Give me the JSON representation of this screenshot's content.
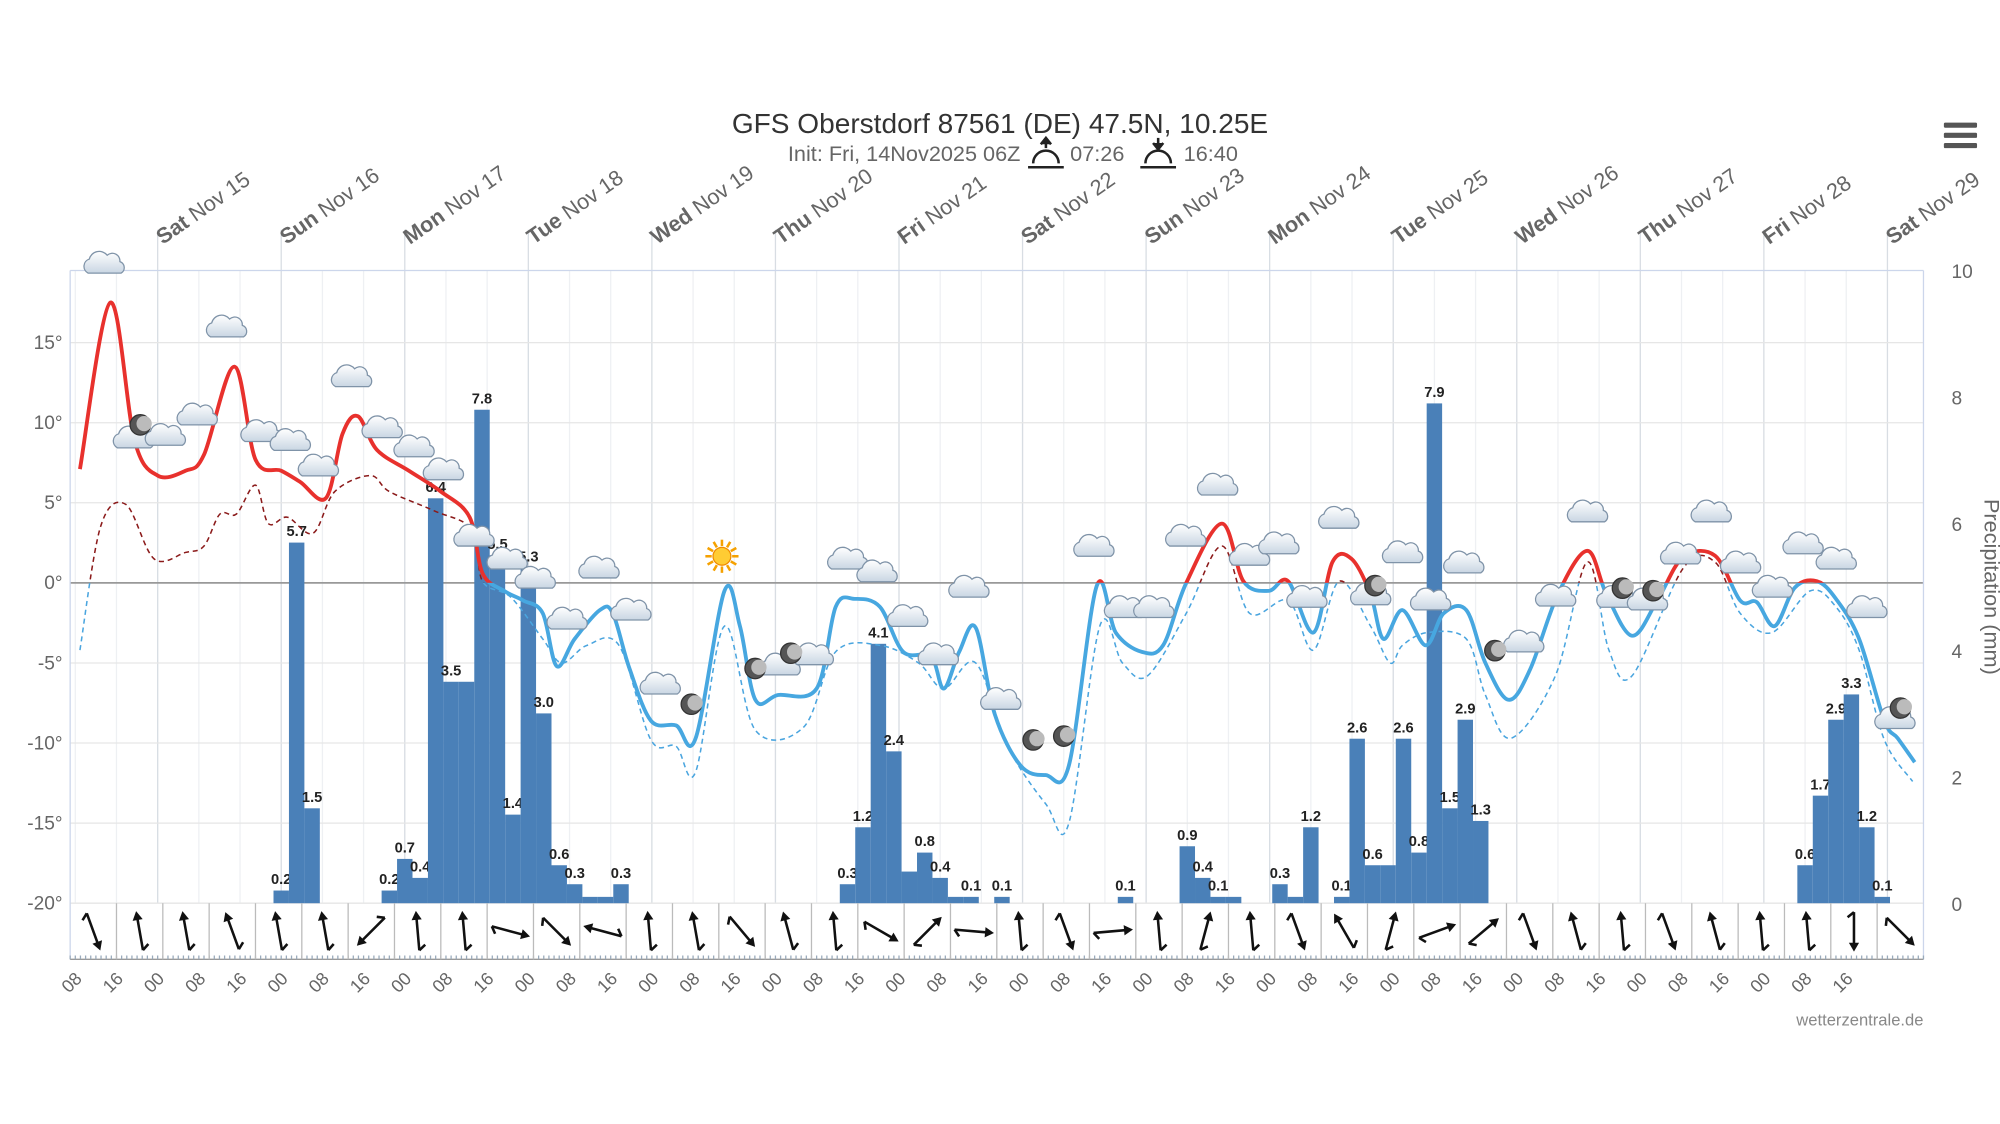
{
  "chart_data": {
    "type": "line",
    "title": "GFS Oberstdorf 87561 (DE) 47.5N, 10.25E",
    "subtitle": "Init: Fri, 14Nov2025 06Z",
    "sunrise": "07:26",
    "sunset": "16:40",
    "y2_label": "Precipitation (mm)",
    "credit": "wetterzentrale.de",
    "xlim": [
      7,
      367
    ],
    "xticks": [
      {
        "value": 8,
        "label": "08"
      },
      {
        "value": 16,
        "label": "16"
      },
      {
        "value": 24,
        "label": "00"
      },
      {
        "value": 32,
        "label": "08"
      },
      {
        "value": 40,
        "label": "16"
      },
      {
        "value": 48,
        "label": "00"
      },
      {
        "value": 56,
        "label": "08"
      },
      {
        "value": 64,
        "label": "16"
      },
      {
        "value": 72,
        "label": "00"
      },
      {
        "value": 80,
        "label": "08"
      },
      {
        "value": 88,
        "label": "16"
      },
      {
        "value": 96,
        "label": "00"
      },
      {
        "value": 104,
        "label": "08"
      },
      {
        "value": 112,
        "label": "16"
      },
      {
        "value": 120,
        "label": "00"
      },
      {
        "value": 128,
        "label": "08"
      },
      {
        "value": 136,
        "label": "16"
      },
      {
        "value": 144,
        "label": "00"
      },
      {
        "value": 152,
        "label": "08"
      },
      {
        "value": 160,
        "label": "16"
      },
      {
        "value": 168,
        "label": "00"
      },
      {
        "value": 176,
        "label": "08"
      },
      {
        "value": 184,
        "label": "16"
      },
      {
        "value": 192,
        "label": "00"
      },
      {
        "value": 200,
        "label": "08"
      },
      {
        "value": 208,
        "label": "16"
      },
      {
        "value": 216,
        "label": "00"
      },
      {
        "value": 224,
        "label": "08"
      },
      {
        "value": 232,
        "label": "16"
      },
      {
        "value": 240,
        "label": "00"
      },
      {
        "value": 248,
        "label": "08"
      },
      {
        "value": 256,
        "label": "16"
      },
      {
        "value": 264,
        "label": "00"
      },
      {
        "value": 272,
        "label": "08"
      },
      {
        "value": 280,
        "label": "16"
      },
      {
        "value": 288,
        "label": "00"
      },
      {
        "value": 296,
        "label": "08"
      },
      {
        "value": 304,
        "label": "16"
      },
      {
        "value": 312,
        "label": "00"
      },
      {
        "value": 320,
        "label": "08"
      },
      {
        "value": 328,
        "label": "16"
      },
      {
        "value": 336,
        "label": "00"
      },
      {
        "value": 344,
        "label": "08"
      },
      {
        "value": 352,
        "label": "16"
      }
    ],
    "day_labels": [
      {
        "value": 24,
        "weekday": "Sat",
        "date": "Nov 15"
      },
      {
        "value": 48,
        "weekday": "Sun",
        "date": "Nov 16"
      },
      {
        "value": 72,
        "weekday": "Mon",
        "date": "Nov 17"
      },
      {
        "value": 96,
        "weekday": "Tue",
        "date": "Nov 18"
      },
      {
        "value": 120,
        "weekday": "Wed",
        "date": "Nov 19"
      },
      {
        "value": 144,
        "weekday": "Thu",
        "date": "Nov 20"
      },
      {
        "value": 168,
        "weekday": "Fri",
        "date": "Nov 21"
      },
      {
        "value": 192,
        "weekday": "Sat",
        "date": "Nov 22"
      },
      {
        "value": 216,
        "weekday": "Sun",
        "date": "Nov 23"
      },
      {
        "value": 240,
        "weekday": "Mon",
        "date": "Nov 24"
      },
      {
        "value": 264,
        "weekday": "Tue",
        "date": "Nov 25"
      },
      {
        "value": 288,
        "weekday": "Wed",
        "date": "Nov 26"
      },
      {
        "value": 312,
        "weekday": "Thu",
        "date": "Nov 27"
      },
      {
        "value": 336,
        "weekday": "Fri",
        "date": "Nov 28"
      },
      {
        "value": 360,
        "weekday": "Sat",
        "date": "Nov 29"
      }
    ],
    "ylim": [
      -20,
      19.5
    ],
    "yticks": [
      {
        "value": -20,
        "label": "-20°"
      },
      {
        "value": -15,
        "label": "-15°"
      },
      {
        "value": -10,
        "label": "-10°"
      },
      {
        "value": -5,
        "label": "-5°"
      },
      {
        "value": 0,
        "label": "0°"
      },
      {
        "value": 5,
        "label": "5°"
      },
      {
        "value": 10,
        "label": "10°"
      },
      {
        "value": 15,
        "label": "15°"
      }
    ],
    "y2lim": [
      0,
      10
    ],
    "y2ticks": [
      0,
      2,
      4,
      6,
      8,
      10
    ],
    "grid": true,
    "series": [
      {
        "type": "bar",
        "axis": "y2",
        "color": "#4a80b8",
        "x": [
          48,
          51,
          54,
          69,
          72,
          75,
          78,
          81,
          84,
          87,
          90,
          93,
          96,
          99,
          102,
          105,
          108,
          111,
          114,
          158,
          161,
          164,
          167,
          170,
          173,
          176,
          179,
          182,
          188,
          212,
          224,
          227,
          230,
          233,
          242,
          245,
          248,
          254,
          257,
          260,
          263,
          266,
          269,
          272,
          275,
          278,
          281,
          344,
          347,
          350,
          353,
          356,
          359
        ],
        "values": [
          0.2,
          5.7,
          1.5,
          0.2,
          0.7,
          0.4,
          6.4,
          3.5,
          3.5,
          7.8,
          5.5,
          1.4,
          5.3,
          3.0,
          0.6,
          0.3,
          0.1,
          0.1,
          0.3,
          0.3,
          1.2,
          4.1,
          2.4,
          0.5,
          0.8,
          0.4,
          0.1,
          0.1,
          0.1,
          0.1,
          0.9,
          0.4,
          0.1,
          0.1,
          0.3,
          0.1,
          1.2,
          0.1,
          2.6,
          0.6,
          0.6,
          2.6,
          0.8,
          7.9,
          1.5,
          2.9,
          1.3,
          0.6,
          1.7,
          2.9,
          3.3,
          1.2,
          0.1
        ],
        "value_labels": [
          "0.2",
          "5.7",
          "1.5",
          "0.2",
          "0.7",
          "0.4",
          "6.4",
          "3.5",
          null,
          "7.8",
          "5.5",
          "1.4",
          "5.3",
          "3.0",
          "0.6",
          "0.3",
          null,
          null,
          "0.3",
          "0.3",
          "1.2",
          "4.1",
          "2.4",
          null,
          "0.8",
          "0.4",
          null,
          "0.1",
          "0.1",
          "0.1",
          "0.9",
          "0.4",
          "0.1",
          null,
          "0.3",
          null,
          "1.2",
          "0.1",
          "2.6",
          "0.6",
          null,
          "2.6",
          "0.8",
          "7.9",
          "1.5",
          "2.9",
          "1.3",
          "0.6",
          "1.7",
          "2.9",
          "3.3",
          "1.2",
          "0.1"
        ]
      },
      {
        "type": "line",
        "dashed": true,
        "color": "#8b1a1a",
        "negative_color": "#4aa5df",
        "x": [
          8.9,
          12.9,
          17.8,
          23.3,
          29.4,
          33,
          36.1,
          39.3,
          43,
          45.5,
          49.2,
          54.2,
          58.4,
          65.3,
          69,
          77.7,
          85.1,
          87.1,
          92.6,
          98.8,
          102.5,
          107.4,
          113.6,
          119.8,
          124.7,
          128.5,
          134.1,
          140.1,
          149.5,
          155.7,
          164.3,
          171.8,
          176.7,
          182.9,
          189.1,
          196.5,
          201,
          207,
          211.4,
          216.3,
          223.8,
          230.7,
          236.1,
          243.6,
          248.5,
          253.5,
          259.6,
          263.4,
          265.8,
          270.7,
          278.2,
          281.9,
          286.9,
          295.5,
          301.7,
          305.9,
          310.4,
          320.3,
          326.5,
          331.4,
          337.6,
          345,
          350,
          354.5,
          359.4,
          364.9
        ],
        "values": [
          -4.2,
          3.5,
          4.9,
          1.5,
          1.9,
          2.3,
          4.3,
          4.3,
          6.1,
          3.7,
          4.1,
          3.1,
          5.7,
          6.7,
          5.7,
          4.5,
          3.3,
          0.1,
          -0.9,
          -3.5,
          -5,
          -3.9,
          -3.9,
          -9.8,
          -10.2,
          -11.8,
          -2.7,
          -9.2,
          -9,
          -4.3,
          -3.9,
          -5,
          -6.6,
          -5,
          -10.2,
          -13.8,
          -15,
          -2.7,
          -5,
          -5.8,
          -1.9,
          2.3,
          -1.9,
          -1.1,
          -4.2,
          0.1,
          -2.7,
          -5,
          -3.9,
          -3.1,
          -3.5,
          -7,
          -9.7,
          -5.8,
          1.3,
          -4.2,
          -5.8,
          0.9,
          1.3,
          -1.9,
          -3.1,
          -0.5,
          -1.5,
          -4.2,
          -9.8,
          -12.4
        ]
      },
      {
        "type": "line",
        "color": "#e8312d",
        "negative_color": "#47a7e0",
        "x": [
          8.9,
          14.8,
          19.5,
          24,
          29.4,
          33,
          38.9,
          43,
          48,
          51.7,
          56.7,
          59.9,
          62.9,
          66.6,
          72.8,
          79,
          84.6,
          87.1,
          91.3,
          95,
          98.8,
          101.5,
          105,
          109.9,
          112.4,
          115.6,
          119.8,
          124.7,
          128.5,
          134.1,
          137.1,
          140.1,
          144.5,
          152,
          155.7,
          159.4,
          164.3,
          168.8,
          174.2,
          176.7,
          179.7,
          182.9,
          186.6,
          191.6,
          196.5,
          201,
          206.4,
          210.1,
          215.1,
          219.3,
          223.8,
          230.7,
          234.9,
          239.8,
          243.6,
          248.5,
          252.2,
          255.9,
          259.6,
          262.1,
          265.8,
          270.3,
          273.8,
          278.2,
          281.9,
          286.4,
          290.6,
          296,
          301.7,
          305.4,
          310.4,
          315.3,
          320.3,
          326.5,
          331.4,
          334.6,
          338.1,
          342,
          346.3,
          350,
          354.5,
          359.4,
          362,
          365.3
        ],
        "values": [
          7.1,
          17.5,
          8.9,
          6.7,
          7,
          8,
          13.5,
          7.7,
          7,
          6.3,
          5.3,
          9.3,
          10.4,
          8.3,
          7,
          5.7,
          4.1,
          0.6,
          -0.5,
          -1.1,
          -1.9,
          -5.2,
          -3.5,
          -1.7,
          -1.9,
          -5.3,
          -8.6,
          -8.9,
          -9.7,
          -0.5,
          -2.7,
          -7.3,
          -7,
          -6.6,
          -1.5,
          -1,
          -1.5,
          -4.3,
          -4.6,
          -6.6,
          -4.3,
          -2.8,
          -8.2,
          -11.4,
          -12,
          -11.4,
          -0.2,
          -3.1,
          -4.3,
          -3.9,
          0,
          3.7,
          0.1,
          -0.5,
          0.1,
          -3.1,
          1.3,
          1.5,
          -0.7,
          -3.5,
          -1.7,
          -3.9,
          -1.9,
          -1.7,
          -5,
          -7.3,
          -5.4,
          -0.7,
          2,
          -0.7,
          -3.3,
          -1.1,
          1.6,
          1.7,
          -1.1,
          -1.2,
          -2.7,
          -0.3,
          0.1,
          -1,
          -3.5,
          -8.6,
          -9.7,
          -11.2
        ]
      }
    ],
    "wind_direction": [
      160,
      -10,
      -10,
      -20,
      -10,
      -10,
      225,
      -5,
      -5,
      105,
      135,
      285,
      -5,
      -10,
      140,
      -15,
      -5,
      120,
      45,
      95,
      -5,
      160,
      85,
      -5,
      15,
      -5,
      160,
      -30,
      15,
      70,
      50,
      160,
      -15,
      -5,
      160,
      -15,
      -5,
      -5,
      180,
      135
    ]
  }
}
